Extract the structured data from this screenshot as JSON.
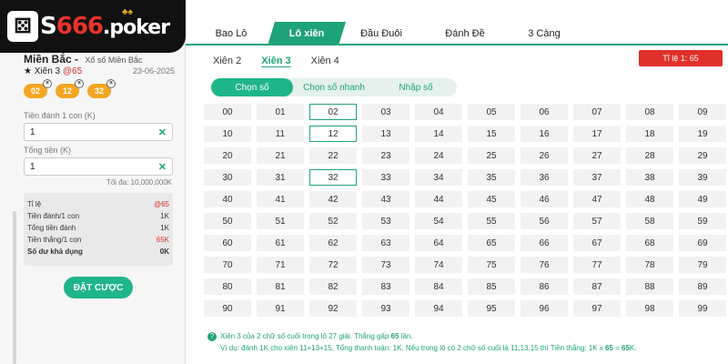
{
  "logo": {
    "text_a": "S",
    "text_b": "666",
    "text_c": ".poker"
  },
  "ticket": {
    "region": "Miền Bắc -",
    "region_sub": "Xổ số Miền Bắc",
    "bet_type": "Xiên 3",
    "bet_odds": "@65",
    "date": "23-06-2025",
    "chips": [
      "02",
      "12",
      "32"
    ],
    "stake_label": "Tiền đánh 1 con (K)",
    "stake_value": "1",
    "total_label": "Tổng tiền (K)",
    "total_value": "1",
    "max_note": "Tối đa: 10,000,000K",
    "summary": [
      {
        "label": "Tỉ lệ",
        "value": "@65",
        "style": "red"
      },
      {
        "label": "Tiền đánh/1 con",
        "value": "1K",
        "style": ""
      },
      {
        "label": "Tổng tiền đánh",
        "value": "1K",
        "style": ""
      },
      {
        "label": "Tiền thắng/1 con",
        "value": "65K",
        "style": "red"
      },
      {
        "label": "Số dư khả dụng",
        "value": "0K",
        "style": "bold"
      }
    ],
    "bet_button": "ĐẶT CƯỢC"
  },
  "tabs": [
    "Bao Lô",
    "Lô xiên",
    "Đầu Đuôi",
    "Đánh Đề",
    "3 Càng"
  ],
  "active_tab": 1,
  "subtabs": [
    "Xiên 2",
    "Xiên 3",
    "Xiên 4"
  ],
  "active_subtab": 1,
  "rate_badge": "Tỉ lệ 1: 65",
  "modes": [
    "Chọn số",
    "Chọn số nhanh",
    "Nhập số"
  ],
  "active_mode": 0,
  "numbers": [
    "00",
    "01",
    "02",
    "03",
    "04",
    "05",
    "06",
    "07",
    "08",
    "09",
    "10",
    "11",
    "12",
    "13",
    "14",
    "15",
    "16",
    "17",
    "18",
    "19",
    "20",
    "21",
    "22",
    "23",
    "24",
    "25",
    "26",
    "27",
    "28",
    "29",
    "30",
    "31",
    "32",
    "33",
    "34",
    "35",
    "36",
    "37",
    "38",
    "39",
    "40",
    "41",
    "42",
    "43",
    "44",
    "45",
    "46",
    "47",
    "48",
    "49",
    "50",
    "51",
    "52",
    "53",
    "54",
    "55",
    "56",
    "57",
    "58",
    "59",
    "60",
    "61",
    "62",
    "63",
    "64",
    "65",
    "66",
    "67",
    "68",
    "69",
    "70",
    "71",
    "72",
    "73",
    "74",
    "75",
    "76",
    "77",
    "78",
    "79",
    "80",
    "81",
    "82",
    "83",
    "84",
    "85",
    "86",
    "87",
    "88",
    "89",
    "90",
    "91",
    "92",
    "93",
    "94",
    "95",
    "96",
    "97",
    "98",
    "99"
  ],
  "selected_numbers": [
    "02",
    "12",
    "32"
  ],
  "help": {
    "line1_a": "Xiên 3 của 2 chữ số cuối trong lô 27 giải. Thắng gấp ",
    "line1_b": "65",
    "line1_c": " lần.",
    "line2_a": "Ví dụ: đánh 1K cho xiên 11+13+15, Tổng thanh toán: 1K. Nếu trong lô có 2 chữ số cuối là 11,13,15 thì Tiền thắng: 1K x ",
    "line2_b": "65",
    "line2_c": " = ",
    "line2_d": "65",
    "line2_e": "K."
  }
}
